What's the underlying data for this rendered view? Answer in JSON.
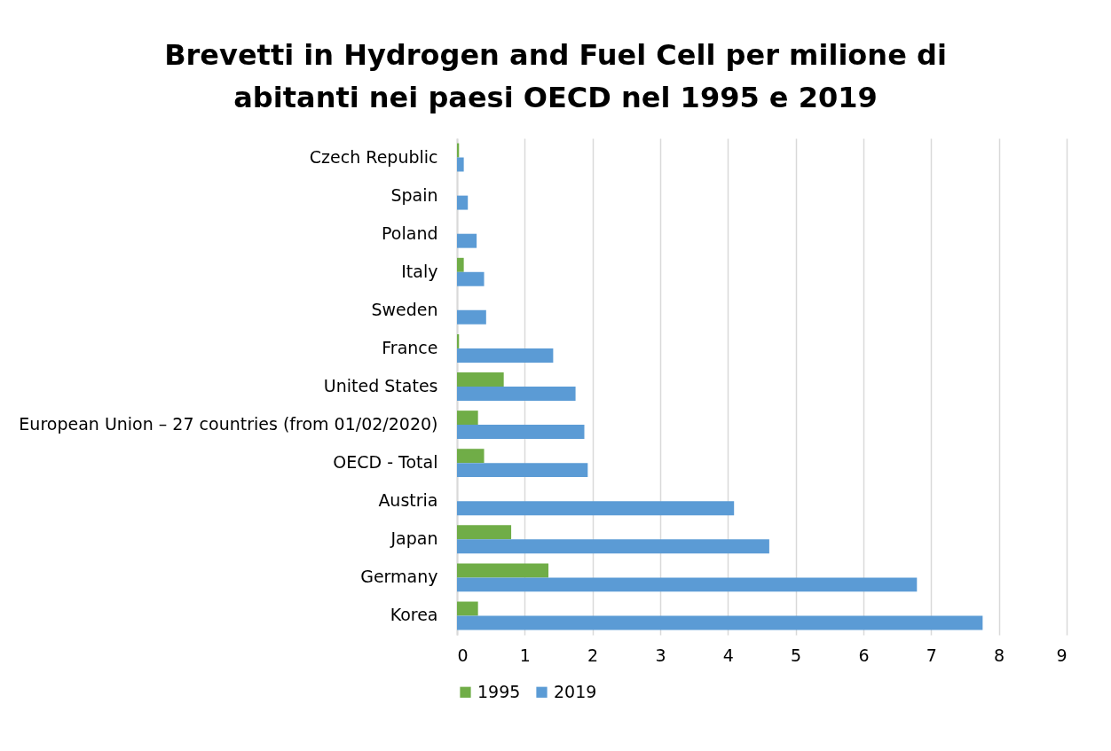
{
  "chart_data": {
    "type": "bar",
    "orientation": "horizontal",
    "title": "Brevetti in Hydrogen and Fuel Cell per milione di abitanti nei paesi OECD nel 1995 e 2019",
    "categories": [
      "Czech Republic",
      "Spain",
      "Poland",
      "Italy",
      "Sweden",
      "France",
      "United States",
      "European Union – 27 countries (from 01/02/2020)",
      "OECD - Total",
      "Austria",
      "Japan",
      "Germany",
      "Korea"
    ],
    "series": [
      {
        "name": "1995",
        "color": "#70ad47",
        "values": [
          0.03,
          null,
          null,
          0.1,
          null,
          0.03,
          0.69,
          0.31,
          0.4,
          null,
          0.8,
          1.35,
          0.31
        ]
      },
      {
        "name": "2019",
        "color": "#5b9bd5",
        "values": [
          0.1,
          0.16,
          0.29,
          0.4,
          0.43,
          1.42,
          1.75,
          1.88,
          1.93,
          4.09,
          4.61,
          6.79,
          7.76
        ]
      }
    ],
    "xlim": [
      0,
      9
    ],
    "xticks": [
      0,
      1,
      2,
      3,
      4,
      5,
      6,
      7,
      8,
      9
    ],
    "grid": "x",
    "legend": "bottom"
  }
}
